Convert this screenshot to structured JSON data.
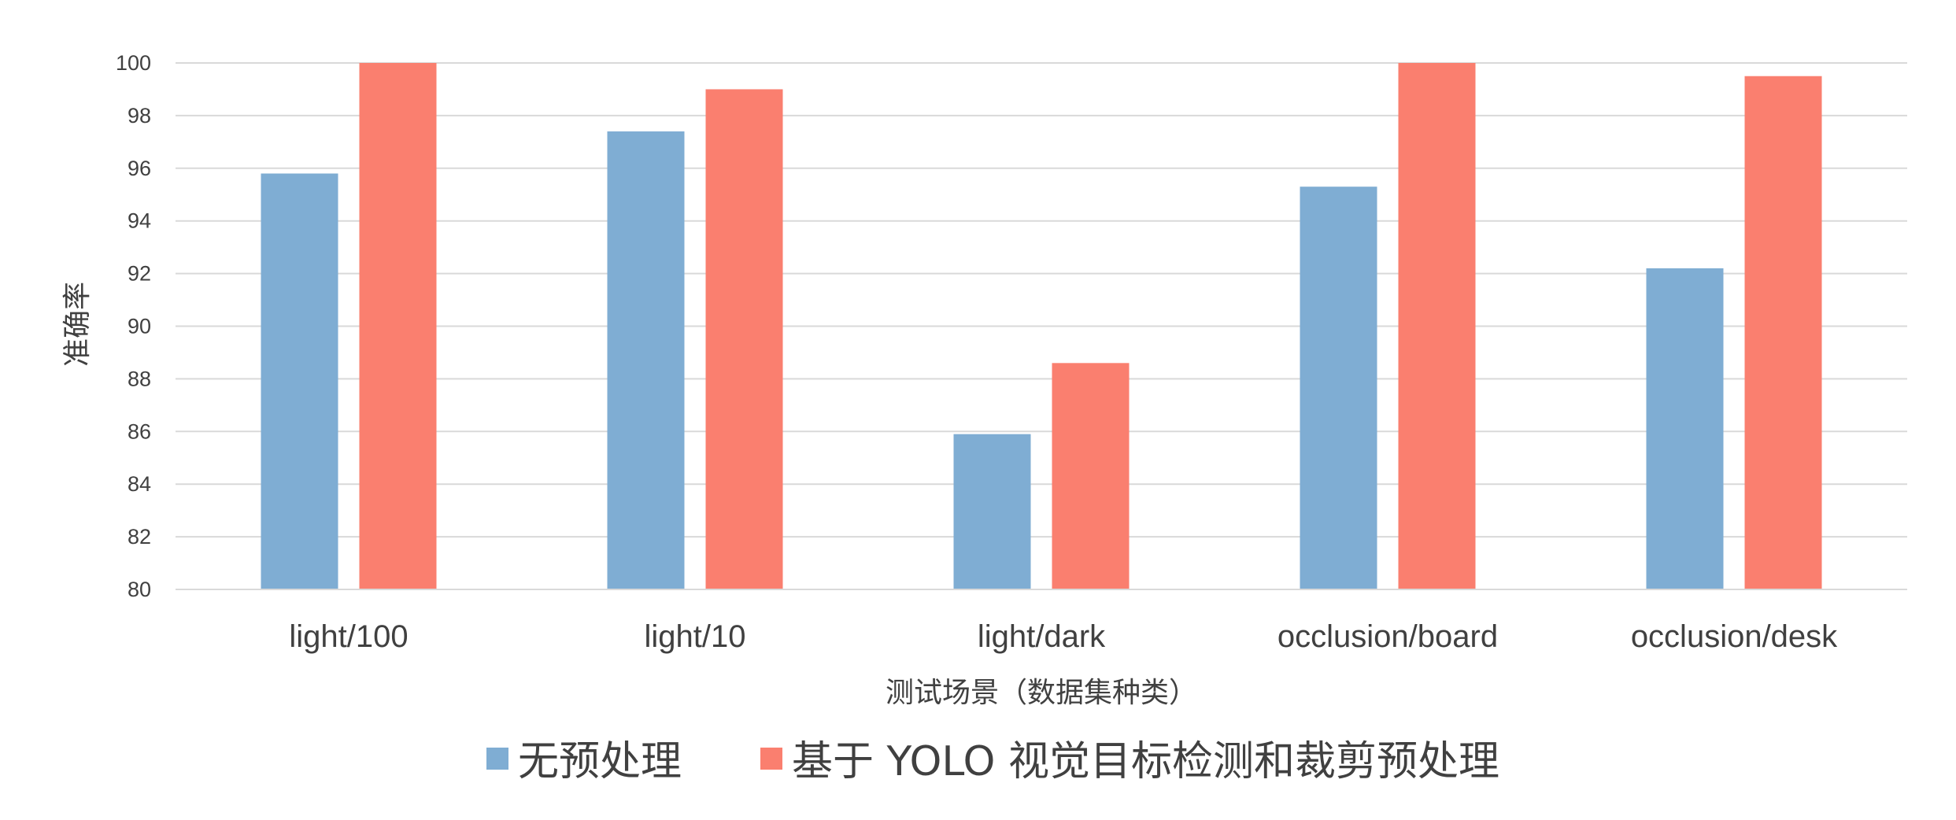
{
  "chart_data": {
    "type": "bar",
    "title": "",
    "xlabel": "测试场景（数据集种类）",
    "ylabel": "准确率",
    "ylim": [
      80,
      100
    ],
    "yticks": [
      "80",
      "82",
      "84",
      "86",
      "88",
      "90",
      "92",
      "94",
      "96",
      "98",
      "100"
    ],
    "categories": [
      "light/100",
      "light/10",
      "light/dark",
      "occlusion/board",
      "occlusion/desk"
    ],
    "series": [
      {
        "name": "无预处理",
        "color": "#7fadd3",
        "values": [
          95.8,
          97.4,
          85.9,
          95.3,
          92.2
        ]
      },
      {
        "name": "基于 YOLO 视觉目标检测和裁剪预处理",
        "color": "#fa7f6f",
        "values": [
          100,
          99.0,
          88.6,
          100,
          99.5
        ]
      }
    ],
    "grid": true,
    "legend_position": "bottom"
  }
}
